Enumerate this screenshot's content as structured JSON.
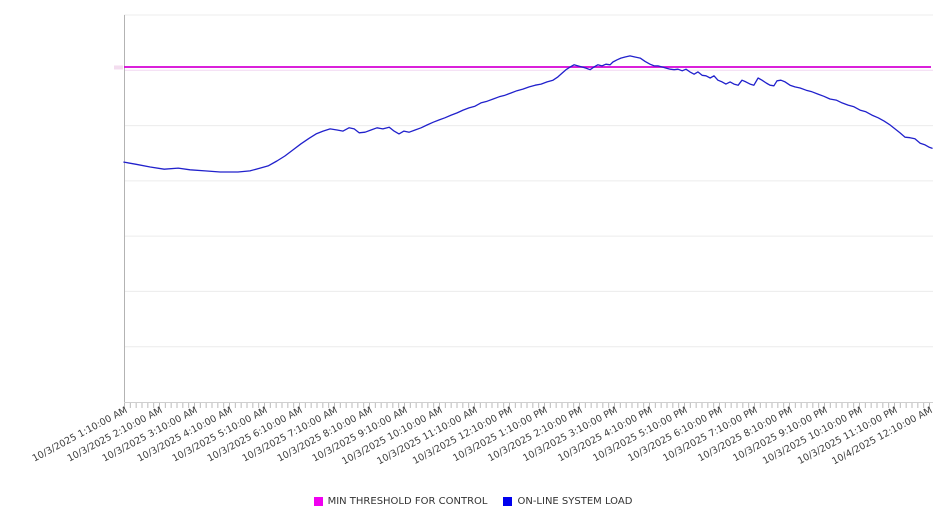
{
  "legend": {
    "items": [
      {
        "label": "MIN THRESHOLD FOR CONTROL",
        "color": "#F000F0"
      },
      {
        "label": "ON-LINE SYSTEM LOAD",
        "color": "#0000EE"
      }
    ]
  },
  "colors": {
    "threshold_line": "#D400D4",
    "series_line": "#2121CC",
    "gridline": "#ECECEC",
    "gridline_under_threshold": "#F2D7F2",
    "x_axis_line": "#CFCFCF",
    "y_axis_line": "#B3B3B3",
    "tick": "#BBBBBB",
    "axis_label_text": "#3C3C3C",
    "y_axis_artifact": "#F3DDEF"
  },
  "chart_data": {
    "type": "line",
    "title": "",
    "xlabel": "",
    "ylabel": "",
    "grid": "horizontal",
    "legend_position": "bottom",
    "x_labels": [
      "10/3/2025 1:10:00 AM",
      "10/3/2025 2:10:00 AM",
      "10/3/2025 3:10:00 AM",
      "10/3/2025 4:10:00 AM",
      "10/3/2025 5:10:00 AM",
      "10/3/2025 6:10:00 AM",
      "10/3/2025 7:10:00 AM",
      "10/3/2025 8:10:00 AM",
      "10/3/2025 9:10:00 AM",
      "10/3/2025 10:10:00 AM",
      "10/3/2025 11:10:00 AM",
      "10/3/2025 12:10:00 PM",
      "10/3/2025 1:10:00 PM",
      "10/3/2025 2:10:00 PM",
      "10/3/2025 3:10:00 PM",
      "10/3/2025 4:10:00 PM",
      "10/3/2025 5:10:00 PM",
      "10/3/2025 6:10:00 PM",
      "10/3/2025 7:10:00 PM",
      "10/3/2025 8:10:00 PM",
      "10/3/2025 9:10:00 PM",
      "10/3/2025 10:10:00 PM",
      "10/3/2025 11:10:00 PM",
      "10/4/2025 12:10:00 AM"
    ],
    "x_label_rotation_deg": -28,
    "x_minor_tick_minutes": 10,
    "y_axis": {
      "min": 0,
      "max": 70,
      "gridline_step": 10,
      "tick_labels_visible": false
    },
    "threshold": {
      "name": "MIN THRESHOLD FOR CONTROL",
      "value": 60.6,
      "color": "#D400D4"
    },
    "series": [
      {
        "name": "ON-LINE SYSTEM LOAD",
        "color": "#2121CC",
        "x_unit": "hours_since_10/3/2025_midnight",
        "points": [
          [
            1.05,
            43.4
          ],
          [
            1.4,
            43.0
          ],
          [
            1.8,
            42.5
          ],
          [
            2.2,
            42.1
          ],
          [
            2.6,
            42.3
          ],
          [
            2.94,
            42.0
          ],
          [
            3.37,
            41.8
          ],
          [
            3.8,
            41.6
          ],
          [
            4.31,
            41.6
          ],
          [
            4.65,
            41.8
          ],
          [
            4.94,
            42.3
          ],
          [
            5.17,
            42.7
          ],
          [
            5.42,
            43.6
          ],
          [
            5.65,
            44.5
          ],
          [
            5.88,
            45.6
          ],
          [
            6.11,
            46.7
          ],
          [
            6.34,
            47.7
          ],
          [
            6.54,
            48.5
          ],
          [
            6.74,
            49.0
          ],
          [
            6.94,
            49.4
          ],
          [
            7.14,
            49.2
          ],
          [
            7.31,
            49.0
          ],
          [
            7.48,
            49.6
          ],
          [
            7.63,
            49.4
          ],
          [
            7.77,
            48.7
          ],
          [
            7.94,
            48.8
          ],
          [
            8.11,
            49.2
          ],
          [
            8.28,
            49.6
          ],
          [
            8.45,
            49.4
          ],
          [
            8.63,
            49.7
          ],
          [
            8.77,
            49.0
          ],
          [
            8.91,
            48.5
          ],
          [
            9.05,
            49.0
          ],
          [
            9.2,
            48.8
          ],
          [
            9.37,
            49.2
          ],
          [
            9.54,
            49.6
          ],
          [
            9.71,
            50.1
          ],
          [
            9.88,
            50.6
          ],
          [
            10.05,
            51.0
          ],
          [
            10.22,
            51.4
          ],
          [
            10.4,
            51.9
          ],
          [
            10.57,
            52.3
          ],
          [
            10.74,
            52.8
          ],
          [
            10.91,
            53.2
          ],
          [
            11.08,
            53.5
          ],
          [
            11.25,
            54.1
          ],
          [
            11.43,
            54.4
          ],
          [
            11.6,
            54.8
          ],
          [
            11.77,
            55.2
          ],
          [
            11.94,
            55.5
          ],
          [
            12.11,
            55.9
          ],
          [
            12.28,
            56.3
          ],
          [
            12.45,
            56.6
          ],
          [
            12.63,
            57.0
          ],
          [
            12.8,
            57.3
          ],
          [
            12.97,
            57.5
          ],
          [
            13.14,
            57.9
          ],
          [
            13.31,
            58.2
          ],
          [
            13.45,
            58.8
          ],
          [
            13.57,
            59.5
          ],
          [
            13.68,
            60.1
          ],
          [
            13.8,
            60.6
          ],
          [
            13.91,
            61.0
          ],
          [
            14.02,
            60.8
          ],
          [
            14.14,
            60.6
          ],
          [
            14.25,
            60.4
          ],
          [
            14.37,
            60.1
          ],
          [
            14.48,
            60.6
          ],
          [
            14.59,
            61.0
          ],
          [
            14.71,
            60.8
          ],
          [
            14.82,
            61.1
          ],
          [
            14.94,
            61.0
          ],
          [
            15.02,
            61.5
          ],
          [
            15.14,
            61.9
          ],
          [
            15.25,
            62.2
          ],
          [
            15.37,
            62.4
          ],
          [
            15.51,
            62.6
          ],
          [
            15.65,
            62.4
          ],
          [
            15.8,
            62.2
          ],
          [
            15.94,
            61.6
          ],
          [
            16.08,
            61.1
          ],
          [
            16.2,
            60.8
          ],
          [
            16.31,
            60.8
          ],
          [
            16.43,
            60.6
          ],
          [
            16.54,
            60.4
          ],
          [
            16.66,
            60.2
          ],
          [
            16.77,
            60.1
          ],
          [
            16.88,
            60.2
          ],
          [
            17.0,
            59.9
          ],
          [
            17.11,
            60.2
          ],
          [
            17.22,
            59.7
          ],
          [
            17.34,
            59.3
          ],
          [
            17.45,
            59.7
          ],
          [
            17.57,
            59.1
          ],
          [
            17.68,
            59.0
          ],
          [
            17.8,
            58.6
          ],
          [
            17.91,
            59.0
          ],
          [
            18.02,
            58.2
          ],
          [
            18.14,
            57.9
          ],
          [
            18.25,
            57.5
          ],
          [
            18.37,
            57.9
          ],
          [
            18.48,
            57.5
          ],
          [
            18.6,
            57.3
          ],
          [
            18.71,
            58.2
          ],
          [
            18.82,
            57.9
          ],
          [
            18.94,
            57.5
          ],
          [
            19.05,
            57.3
          ],
          [
            19.17,
            58.6
          ],
          [
            19.28,
            58.2
          ],
          [
            19.4,
            57.7
          ],
          [
            19.51,
            57.3
          ],
          [
            19.62,
            57.2
          ],
          [
            19.71,
            58.1
          ],
          [
            19.82,
            58.2
          ],
          [
            19.94,
            57.9
          ],
          [
            20.08,
            57.3
          ],
          [
            20.22,
            57.0
          ],
          [
            20.37,
            56.8
          ],
          [
            20.54,
            56.4
          ],
          [
            20.71,
            56.1
          ],
          [
            20.88,
            55.7
          ],
          [
            21.05,
            55.3
          ],
          [
            21.22,
            54.8
          ],
          [
            21.4,
            54.6
          ],
          [
            21.57,
            54.1
          ],
          [
            21.74,
            53.7
          ],
          [
            21.91,
            53.4
          ],
          [
            22.08,
            52.8
          ],
          [
            22.25,
            52.5
          ],
          [
            22.42,
            51.9
          ],
          [
            22.6,
            51.4
          ],
          [
            22.77,
            50.8
          ],
          [
            22.94,
            50.1
          ],
          [
            23.08,
            49.4
          ],
          [
            23.22,
            48.7
          ],
          [
            23.37,
            47.9
          ],
          [
            23.51,
            47.8
          ],
          [
            23.65,
            47.6
          ],
          [
            23.8,
            46.8
          ],
          [
            23.94,
            46.5
          ],
          [
            24.05,
            46.1
          ],
          [
            24.14,
            45.9
          ]
        ]
      }
    ]
  }
}
